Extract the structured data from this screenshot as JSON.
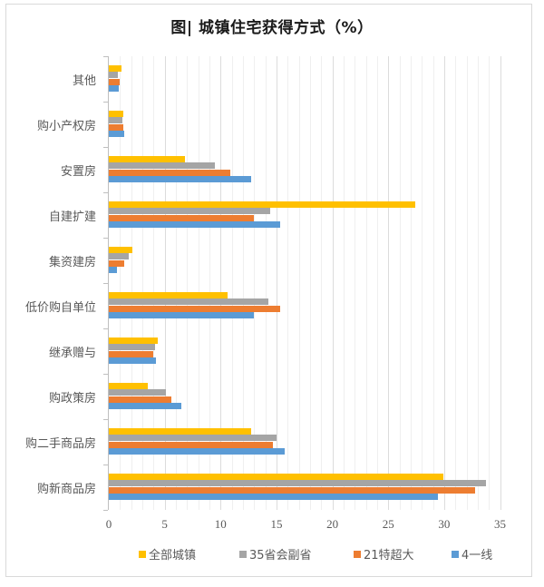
{
  "title": "图| 城镇住宅获得方式（%）",
  "colors": {
    "全部城镇": "#ffc000",
    "35省会副省": "#a5a5a5",
    "21特超大": "#ed7d31",
    "4一线": "#5b9bd5"
  },
  "legend": [
    {
      "label": "全部城镇",
      "color": "#ffc000"
    },
    {
      "label": "35省会副省",
      "color": "#a5a5a5"
    },
    {
      "label": "21特超大",
      "color": "#ed7d31"
    },
    {
      "label": "4一线",
      "color": "#5b9bd5"
    }
  ],
  "x_ticks": [
    "0",
    "5",
    "10",
    "15",
    "20",
    "25",
    "30",
    "35"
  ],
  "chart_data": {
    "type": "bar",
    "orientation": "horizontal",
    "title": "图| 城镇住宅获得方式（%）",
    "xlabel": "",
    "ylabel": "",
    "xlim": [
      0,
      35
    ],
    "x_ticks": [
      0,
      5,
      10,
      15,
      20,
      25,
      30,
      35
    ],
    "grid": true,
    "legend_position": "bottom",
    "categories": [
      "其他",
      "购小产权房",
      "安置房",
      "自建扩建",
      "集资建房",
      "低价购自单位",
      "继承赠与",
      "购政策房",
      "购二手商品房",
      "购新商品房"
    ],
    "series": [
      {
        "name": "全部城镇",
        "color": "#ffc000",
        "values": [
          1.1,
          1.3,
          6.8,
          27.4,
          2.1,
          10.6,
          4.4,
          3.5,
          12.7,
          29.9
        ]
      },
      {
        "name": "35省会副省",
        "color": "#a5a5a5",
        "values": [
          0.8,
          1.2,
          9.5,
          14.4,
          1.8,
          14.3,
          4.1,
          5.1,
          15.0,
          33.7
        ]
      },
      {
        "name": "21特超大",
        "color": "#ed7d31",
        "values": [
          1.0,
          1.3,
          10.9,
          13.0,
          1.4,
          15.3,
          4.0,
          5.6,
          14.7,
          32.8
        ]
      },
      {
        "name": "4一线",
        "color": "#5b9bd5",
        "values": [
          0.9,
          1.4,
          12.7,
          15.3,
          0.7,
          13.0,
          4.2,
          6.5,
          15.7,
          29.4
        ]
      }
    ]
  }
}
